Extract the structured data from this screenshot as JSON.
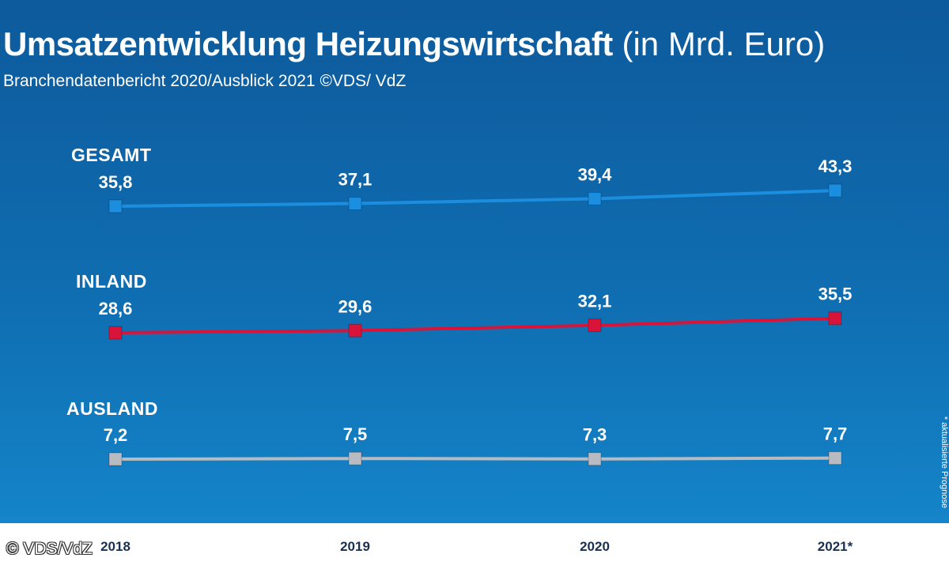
{
  "title": {
    "main": "Umsatzentwicklung Heizungswirtschaft",
    "unit": "(in Mrd. Euro)"
  },
  "subtitle": "Branchendatenbericht 2020/Ausblick 2021 ©VDS/ VdZ",
  "footnote": "* aktualisierte Prognose",
  "copyright": "© VDS/VdZ",
  "colors": {
    "gesamt": "#1c8ee0",
    "inland": "#d8143a",
    "ausland": "#b8bcc2"
  },
  "chart_data": {
    "type": "line",
    "title": "Umsatzentwicklung Heizungswirtschaft (in Mrd. Euro)",
    "categories": [
      "2018",
      "2019",
      "2020",
      "2021*"
    ],
    "series": [
      {
        "key": "gesamt",
        "name": "GESAMT",
        "values": [
          35.8,
          37.1,
          39.4,
          43.3
        ],
        "labels": [
          "35,8",
          "37,1",
          "39,4",
          "43,3"
        ]
      },
      {
        "key": "inland",
        "name": "INLAND",
        "values": [
          28.6,
          29.6,
          32.1,
          35.5
        ],
        "labels": [
          "28,6",
          "29,6",
          "32,1",
          "35,5"
        ]
      },
      {
        "key": "ausland",
        "name": "AUSLAND",
        "values": [
          7.2,
          7.5,
          7.3,
          7.7
        ],
        "labels": [
          "7,2",
          "7,5",
          "7,3",
          "7,7"
        ]
      }
    ],
    "xlabel": "",
    "ylabel": "",
    "grid": false,
    "legend": "inline-left"
  }
}
